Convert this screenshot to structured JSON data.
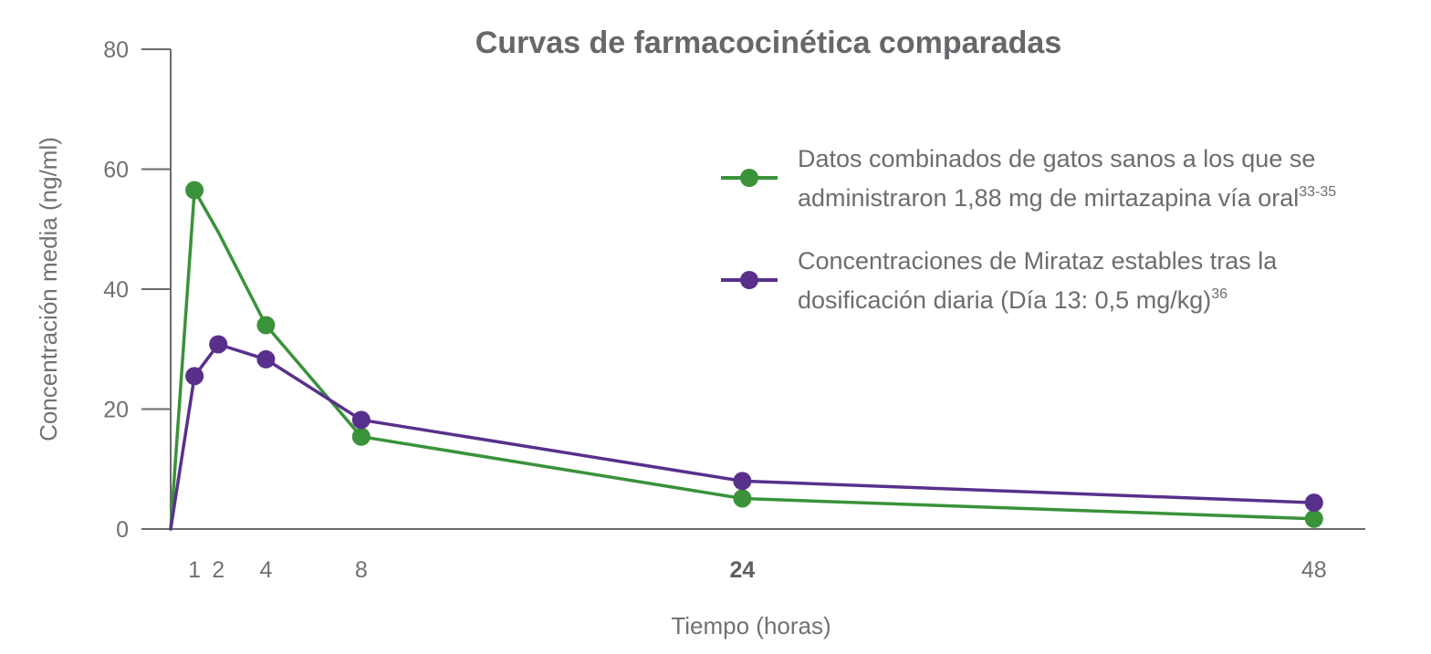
{
  "colors": {
    "green": "#3a923a",
    "purple": "#58308c",
    "axis": "#6b6b6b",
    "text": "#707173"
  },
  "chart_data": {
    "type": "line",
    "title": "Curvas de farmacocinética comparadas",
    "xlabel": "Tiempo (horas)",
    "ylabel": "Concentración media (ng/ml)",
    "ylim": [
      0,
      80
    ],
    "xlim": [
      0,
      50
    ],
    "xticks": [
      {
        "value": 1,
        "label": "1",
        "bold": false
      },
      {
        "value": 2,
        "label": "2",
        "bold": false
      },
      {
        "value": 4,
        "label": "4",
        "bold": false
      },
      {
        "value": 8,
        "label": "8",
        "bold": false
      },
      {
        "value": 24,
        "label": "24",
        "bold": true
      },
      {
        "value": 48,
        "label": "48",
        "bold": false
      }
    ],
    "yticks": [
      {
        "value": 0,
        "label": "0"
      },
      {
        "value": 20,
        "label": "20"
      },
      {
        "value": 40,
        "label": "40"
      },
      {
        "value": 60,
        "label": "60"
      },
      {
        "value": 80,
        "label": "80"
      }
    ],
    "grid": false,
    "legend_position": "top-right",
    "series": [
      {
        "color": "#3a923a",
        "legend_lines": [
          {
            "text": "Datos combinados de gatos sanos a los que se",
            "sup": ""
          },
          {
            "text": "administraron 1,88 mg de mirtazapina vía oral",
            "sup": "33-35"
          }
        ],
        "x": [
          0,
          1,
          2,
          4,
          8,
          24,
          48
        ],
        "y": [
          0,
          56.5,
          49.5,
          34.0,
          15.4,
          5.1,
          1.7
        ],
        "markers": [
          false,
          true,
          false,
          true,
          true,
          true,
          true
        ]
      },
      {
        "color": "#58308c",
        "legend_lines": [
          {
            "text": "Concentraciones de Mirataz estables tras la",
            "sup": ""
          },
          {
            "text": "dosificación diaria (Día 13: 0,5 mg/kg)",
            "sup": "36"
          }
        ],
        "x": [
          0,
          1,
          2,
          4,
          8,
          24,
          48
        ],
        "y": [
          0,
          25.5,
          30.8,
          28.3,
          18.2,
          8.0,
          4.4
        ],
        "markers": [
          false,
          true,
          true,
          true,
          true,
          true,
          true
        ]
      }
    ]
  }
}
